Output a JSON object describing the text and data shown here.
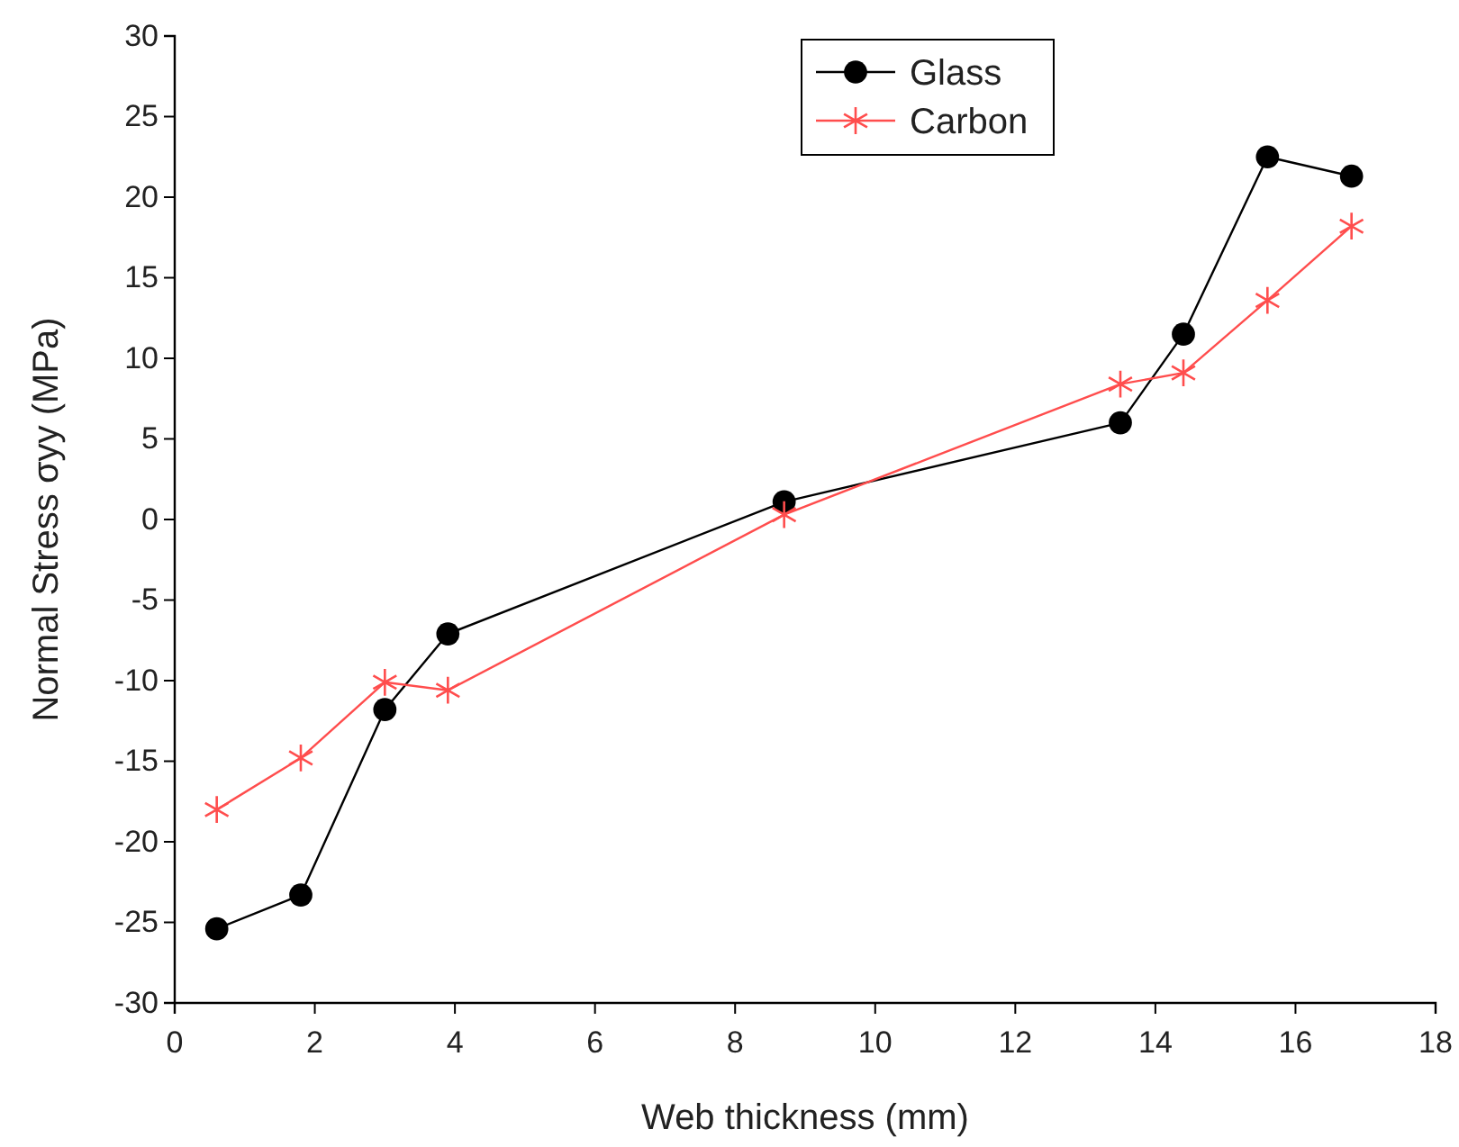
{
  "chart_data": {
    "type": "line",
    "xlabel": "Web thickness (mm)",
    "ylabel": "Normal Stress σyy (MPa)",
    "xlim": [
      0,
      18
    ],
    "xticks": [
      0,
      2,
      4,
      6,
      8,
      10,
      12,
      14,
      16,
      18
    ],
    "ylim": [
      -30,
      30
    ],
    "yticks": [
      -30,
      -25,
      -20,
      -15,
      -10,
      -5,
      0,
      5,
      10,
      15,
      20,
      25,
      30
    ],
    "grid": false,
    "legend": "top",
    "line_style": "solid",
    "series": [
      {
        "name": "Glass",
        "color": "#000000",
        "marker": "circle",
        "x": [
          0.6,
          1.8,
          3.0,
          3.9,
          8.7,
          13.5,
          14.4,
          15.6,
          16.8
        ],
        "values": [
          -25.4,
          -23.3,
          -11.8,
          -7.1,
          1.1,
          6.0,
          11.5,
          22.5,
          21.3
        ]
      },
      {
        "name": "Carbon",
        "color": "#ff4d4d",
        "marker": "cross",
        "x": [
          0.6,
          1.8,
          3.0,
          3.9,
          8.7,
          13.5,
          14.4,
          15.6,
          16.8
        ],
        "values": [
          -18.0,
          -14.8,
          -10.1,
          -10.6,
          0.3,
          8.4,
          9.1,
          13.6,
          18.2
        ]
      }
    ]
  }
}
